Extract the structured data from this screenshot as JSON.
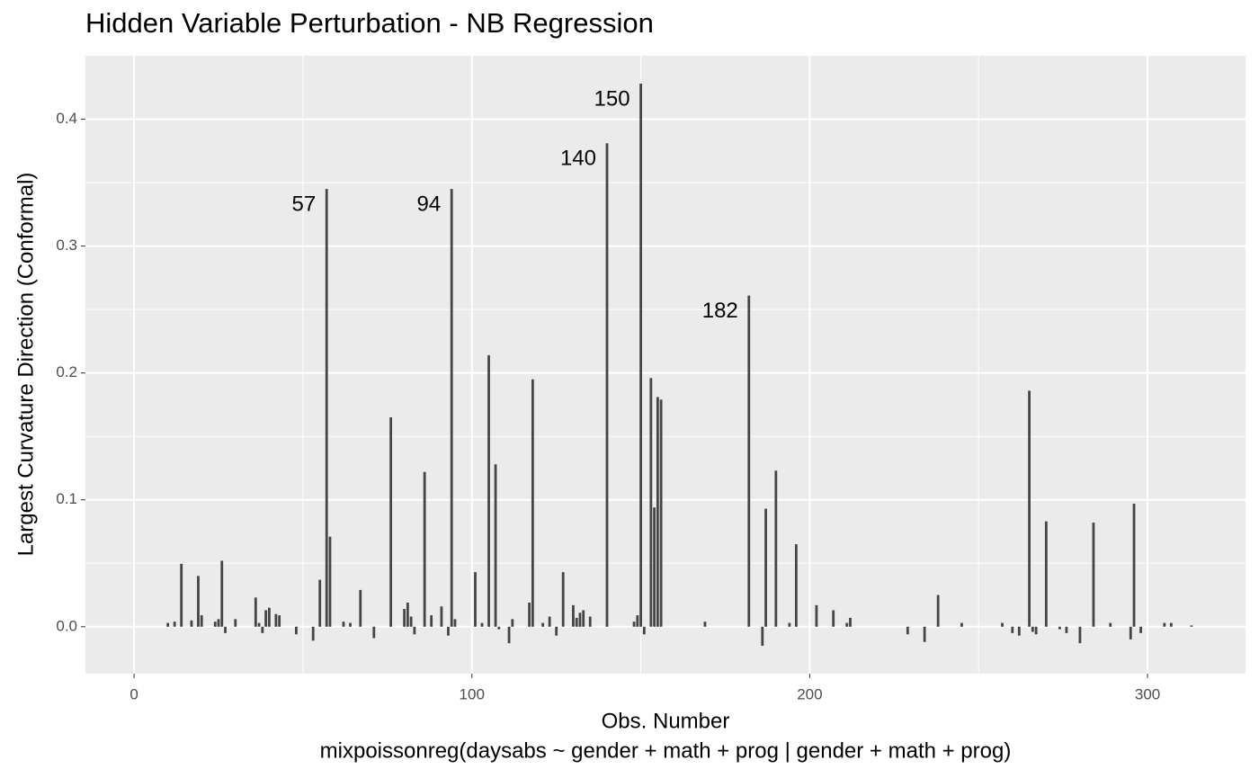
{
  "chart_data": {
    "type": "needle",
    "title": "Hidden Variable Perturbation - NB Regression",
    "xlabel": "Obs. Number",
    "xlabel_sub": "mixpoissonreg(daysabs ~ gender + math + prog | gender + math + prog)",
    "ylabel": "Largest Curvature Direction (Conformal)",
    "color": "#454545",
    "grid": true,
    "minor_grid": true,
    "xlim": [
      -14.4,
      329
    ],
    "ylim": [
      -0.037,
      0.45
    ],
    "xticks": [
      0,
      100,
      200,
      300
    ],
    "yticks": [
      {
        "value": 0,
        "label": "0.0"
      },
      {
        "value": 0.1,
        "label": "0.1"
      },
      {
        "value": 0.2,
        "label": "0.2"
      },
      {
        "value": 0.3,
        "label": "0.3"
      },
      {
        "value": 0.4,
        "label": "0.4"
      }
    ],
    "x": [
      10,
      12,
      14,
      17,
      19,
      20,
      24,
      25,
      26,
      27,
      30,
      36,
      37,
      38,
      39,
      40,
      42,
      43,
      48,
      53,
      55,
      57,
      58,
      62,
      64,
      67,
      71,
      76,
      80,
      81,
      82,
      83,
      86,
      88,
      91,
      93,
      94,
      95,
      101,
      103,
      105,
      107,
      108,
      111,
      112,
      117,
      118,
      121,
      123,
      125,
      127,
      130,
      131,
      132,
      133,
      135,
      140,
      148,
      149,
      150,
      151,
      153,
      154,
      155,
      156,
      169,
      182,
      186,
      187,
      190,
      194,
      196,
      202,
      207,
      211,
      212,
      229,
      234,
      238,
      245,
      257,
      260,
      262,
      265,
      266,
      267,
      270,
      274,
      276,
      280,
      284,
      289,
      295,
      296,
      298,
      305,
      307,
      313
    ],
    "values": [
      0.003,
      0.004,
      0.0496,
      0.005,
      0.04,
      0.009,
      0.004,
      0.006,
      0.052,
      -0.005,
      0.006,
      0.023,
      0.003,
      -0.005,
      0.013,
      0.015,
      0.01,
      0.009,
      -0.006,
      -0.011,
      0.037,
      0.345,
      0.071,
      0.004,
      0.003,
      0.029,
      -0.009,
      0.165,
      0.014,
      0.019,
      0.008,
      -0.006,
      0.122,
      0.009,
      0.016,
      -0.007,
      0.345,
      0.006,
      0.043,
      0.003,
      0.214,
      0.128,
      -0.002,
      -0.013,
      0.006,
      0.019,
      0.195,
      0.003,
      0.008,
      -0.007,
      0.043,
      0.017,
      0.007,
      0.011,
      0.013,
      0.008,
      0.381,
      0.004,
      0.009,
      0.428,
      -0.006,
      0.196,
      0.094,
      0.181,
      0.179,
      0.004,
      0.261,
      -0.015,
      0.093,
      0.123,
      0.003,
      0.065,
      0.017,
      0.013,
      0.003,
      0.007,
      -0.006,
      -0.012,
      0.025,
      0.003,
      0.003,
      -0.005,
      -0.007,
      0.186,
      -0.004,
      -0.006,
      0.083,
      -0.002,
      -0.005,
      -0.013,
      0.082,
      0.003,
      -0.01,
      0.097,
      -0.005,
      0.003,
      0.003,
      0.001
    ],
    "annotations": [
      57,
      94,
      140,
      150,
      182
    ]
  }
}
